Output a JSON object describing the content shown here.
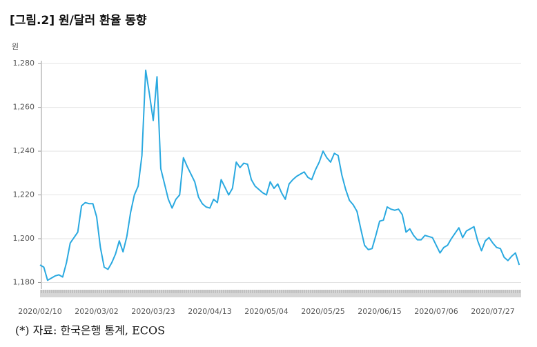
{
  "chart_data": {
    "type": "line",
    "title": "[그림.2] 원/달러 환율 동향",
    "y_unit": "원",
    "note": "(*) 자료: 한국은행 통계, ECOS",
    "color": "#2aa9e0",
    "grid": true,
    "ylim": [
      1177,
      1281
    ],
    "yticks": [
      {
        "value": 1180,
        "label": "1,180"
      },
      {
        "value": 1200,
        "label": "1,200"
      },
      {
        "value": 1220,
        "label": "1,220"
      },
      {
        "value": 1240,
        "label": "1,240"
      },
      {
        "value": 1260,
        "label": "1,260"
      },
      {
        "value": 1280,
        "label": "1,280"
      }
    ],
    "categories": [
      "2020/02/10",
      null,
      null,
      null,
      null,
      null,
      null,
      null,
      null,
      null,
      null,
      null,
      null,
      null,
      null,
      "2020/03/02",
      null,
      null,
      null,
      null,
      null,
      null,
      null,
      null,
      null,
      null,
      null,
      null,
      null,
      null,
      "2020/03/23",
      null,
      null,
      null,
      null,
      null,
      null,
      null,
      null,
      null,
      null,
      null,
      null,
      null,
      null,
      "2020/04/13",
      null,
      null,
      null,
      null,
      null,
      null,
      null,
      null,
      null,
      null,
      null,
      null,
      null,
      null,
      "2020/05/04",
      null,
      null,
      null,
      null,
      null,
      null,
      null,
      null,
      null,
      null,
      null,
      null,
      null,
      null,
      "2020/05/25",
      null,
      null,
      null,
      null,
      null,
      null,
      null,
      null,
      null,
      null,
      null,
      null,
      null,
      null,
      "2020/06/15",
      null,
      null,
      null,
      null,
      null,
      null,
      null,
      null,
      null,
      null,
      null,
      null,
      null,
      null,
      "2020/07/06",
      null,
      null,
      null,
      null,
      null,
      null,
      null,
      null,
      null,
      null,
      null,
      null,
      null,
      null,
      "2020/07/27",
      null,
      null,
      null,
      null,
      null,
      null,
      null
    ],
    "values": [
      1188,
      1187,
      1181,
      1182,
      1183,
      1183.5,
      1182.5,
      1189,
      1198,
      1200.5,
      1203,
      1215,
      1216.5,
      1216,
      1216,
      1210,
      1196,
      1187,
      1186,
      1189,
      1193,
      1199,
      1194,
      1201,
      1212,
      1220,
      1224,
      1238,
      1277,
      1266,
      1254,
      1274,
      1232,
      1225,
      1218,
      1214,
      1218,
      1220,
      1237,
      1233,
      1229.5,
      1226,
      1219,
      1216,
      1214.5,
      1214,
      1218,
      1216.5,
      1227,
      1223.5,
      1220,
      1223,
      1235,
      1232.5,
      1234.5,
      1234,
      1227,
      1224,
      1222.5,
      1221,
      1220,
      1226,
      1223,
      1225,
      1221,
      1218,
      1225,
      1227,
      1228.5,
      1229.5,
      1230.5,
      1228,
      1227,
      1231.5,
      1235,
      1240,
      1237,
      1235,
      1239,
      1238,
      1229,
      1222.5,
      1217.5,
      1215.5,
      1212.5,
      1204.5,
      1197,
      1195,
      1195.5,
      1201.5,
      1208,
      1208.5,
      1214.5,
      1213.5,
      1213,
      1213.5,
      1211,
      1203,
      1204.5,
      1201.5,
      1199.5,
      1199.5,
      1201.5,
      1201,
      1200.5,
      1197,
      1193.5,
      1196,
      1197,
      1200,
      1202.5,
      1205,
      1200.5,
      1203.5,
      1204.5,
      1205.5,
      1199,
      1194.5,
      1199,
      1200.5,
      1198,
      1196,
      1195.5,
      1191.5,
      1190,
      1192,
      1193.5,
      1188
    ]
  }
}
